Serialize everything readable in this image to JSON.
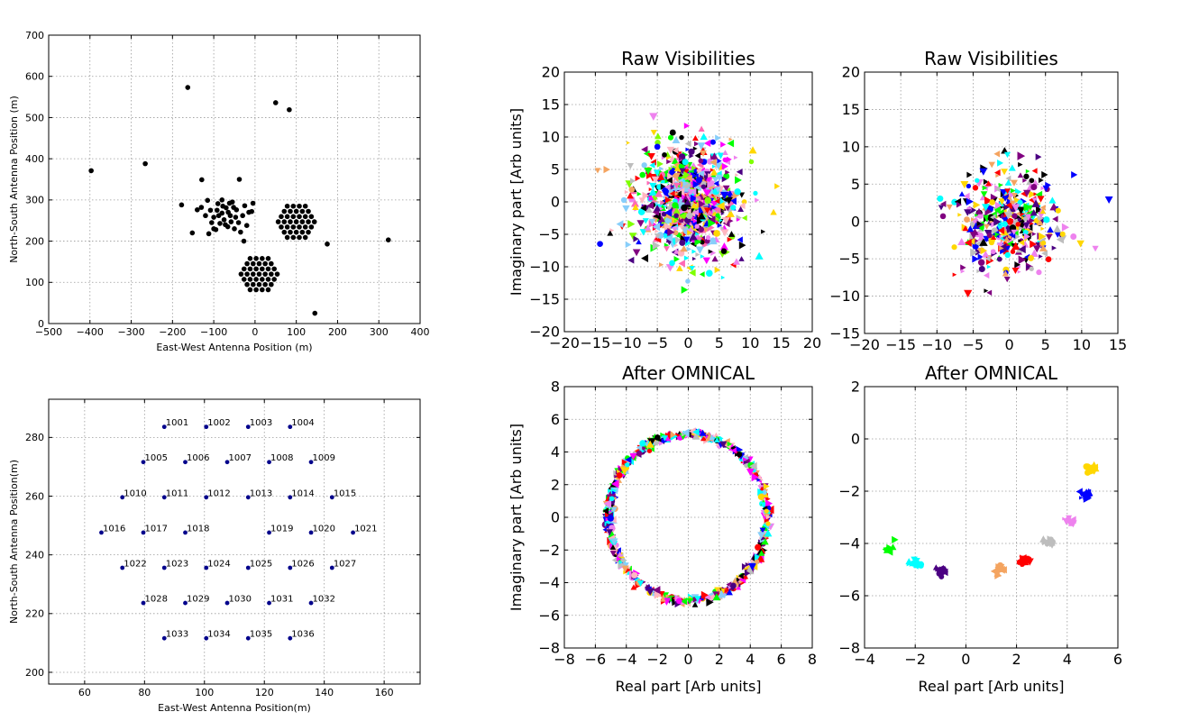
{
  "chart_data": [
    {
      "type": "scatter",
      "title": "",
      "xlabel": "East-West Antenna Position (m)",
      "ylabel": "North-South Antenna Position (m)",
      "xlim": [
        -500,
        400
      ],
      "ylim": [
        0,
        700
      ],
      "xticks": [
        -500,
        -400,
        -300,
        -200,
        -100,
        0,
        100,
        200,
        300,
        400
      ],
      "yticks": [
        0,
        100,
        200,
        300,
        400,
        500,
        600,
        700
      ],
      "xtick_labels": [
        "−500",
        "−400",
        "−300",
        "−200",
        "−100",
        "0",
        "100",
        "200",
        "300",
        "400"
      ],
      "ytick_labels": [
        "0",
        "100",
        "200",
        "300",
        "400",
        "500",
        "600",
        "700"
      ],
      "grid": true,
      "color": "#000000",
      "points": [
        [
          -397,
          371
        ],
        [
          -266,
          388
        ],
        [
          -163,
          573
        ],
        [
          -129,
          349
        ],
        [
          -38,
          350
        ],
        [
          50,
          536
        ],
        [
          83,
          519
        ],
        [
          -178,
          288
        ],
        [
          -152,
          220
        ],
        [
          -140,
          276
        ],
        [
          -130,
          282
        ],
        [
          -115,
          299
        ],
        [
          -112,
          218
        ],
        [
          -95,
          228
        ],
        [
          -90,
          291
        ],
        [
          -85,
          243
        ],
        [
          -80,
          268
        ],
        [
          -75,
          252
        ],
        [
          -70,
          281
        ],
        [
          -66,
          235
        ],
        [
          -60,
          262
        ],
        [
          -55,
          295
        ],
        [
          -50,
          230
        ],
        [
          -45,
          276
        ],
        [
          -40,
          245
        ],
        [
          -35,
          222
        ],
        [
          -30,
          262
        ],
        [
          -25,
          286
        ],
        [
          -20,
          238
        ],
        [
          -15,
          270
        ],
        [
          -27,
          200
        ],
        [
          -105,
          245
        ],
        [
          -100,
          258
        ],
        [
          -92,
          275
        ],
        [
          -88,
          262
        ],
        [
          -78,
          285
        ],
        [
          -72,
          240
        ],
        [
          -65,
          270
        ],
        [
          -58,
          247
        ],
        [
          -52,
          282
        ],
        [
          -47,
          258
        ],
        [
          -62,
          292
        ],
        [
          -100,
          230
        ],
        [
          -108,
          275
        ],
        [
          -120,
          262
        ],
        [
          -8,
          272
        ],
        [
          -80,
          300
        ],
        [
          -5,
          292
        ],
        [
          175,
          193
        ],
        [
          323,
          203
        ],
        [
          145,
          25
        ]
      ],
      "hexagon_arrays": [
        {
          "center": [
            100,
            247
          ],
          "pitch": 14.6,
          "radius": 3
        },
        {
          "center": [
            10,
            120
          ],
          "pitch": 14.6,
          "radius": 3
        }
      ]
    },
    {
      "type": "scatter",
      "title": "",
      "xlabel": "East-West Antenna Position(m)",
      "ylabel": "North-South Antenna Position(m)",
      "xlim": [
        48,
        172
      ],
      "ylim": [
        196,
        293
      ],
      "xticks": [
        60,
        80,
        100,
        120,
        140,
        160
      ],
      "yticks": [
        200,
        220,
        240,
        260,
        280
      ],
      "xtick_labels": [
        "60",
        "80",
        "100",
        "120",
        "140",
        "160"
      ],
      "ytick_labels": [
        "200",
        "220",
        "240",
        "260",
        "280"
      ],
      "grid": true,
      "color": "#00008b",
      "antennas": [
        {
          "id": "1001",
          "x": 86.6,
          "y": 283.6
        },
        {
          "id": "1002",
          "x": 100.6,
          "y": 283.6
        },
        {
          "id": "1003",
          "x": 114.6,
          "y": 283.6
        },
        {
          "id": "1004",
          "x": 128.6,
          "y": 283.6
        },
        {
          "id": "1005",
          "x": 79.6,
          "y": 271.6
        },
        {
          "id": "1006",
          "x": 93.6,
          "y": 271.6
        },
        {
          "id": "1007",
          "x": 107.6,
          "y": 271.6
        },
        {
          "id": "1008",
          "x": 121.6,
          "y": 271.6
        },
        {
          "id": "1009",
          "x": 135.6,
          "y": 271.6
        },
        {
          "id": "1010",
          "x": 72.6,
          "y": 259.6
        },
        {
          "id": "1011",
          "x": 86.6,
          "y": 259.6
        },
        {
          "id": "1012",
          "x": 100.6,
          "y": 259.6
        },
        {
          "id": "1013",
          "x": 114.6,
          "y": 259.6
        },
        {
          "id": "1014",
          "x": 128.6,
          "y": 259.6
        },
        {
          "id": "1015",
          "x": 142.6,
          "y": 259.6
        },
        {
          "id": "1016",
          "x": 65.6,
          "y": 247.6
        },
        {
          "id": "1017",
          "x": 79.6,
          "y": 247.6
        },
        {
          "id": "1018",
          "x": 93.6,
          "y": 247.6
        },
        {
          "id": "1019",
          "x": 121.6,
          "y": 247.6
        },
        {
          "id": "1020",
          "x": 135.6,
          "y": 247.6
        },
        {
          "id": "1021",
          "x": 149.6,
          "y": 247.6
        },
        {
          "id": "1022",
          "x": 72.6,
          "y": 235.6
        },
        {
          "id": "1023",
          "x": 86.6,
          "y": 235.6
        },
        {
          "id": "1024",
          "x": 100.6,
          "y": 235.6
        },
        {
          "id": "1025",
          "x": 114.6,
          "y": 235.6
        },
        {
          "id": "1026",
          "x": 128.6,
          "y": 235.6
        },
        {
          "id": "1027",
          "x": 142.6,
          "y": 235.6
        },
        {
          "id": "1028",
          "x": 79.6,
          "y": 223.6
        },
        {
          "id": "1029",
          "x": 93.6,
          "y": 223.6
        },
        {
          "id": "1030",
          "x": 107.6,
          "y": 223.6
        },
        {
          "id": "1031",
          "x": 121.6,
          "y": 223.6
        },
        {
          "id": "1032",
          "x": 135.6,
          "y": 223.6
        },
        {
          "id": "1033",
          "x": 86.6,
          "y": 211.6
        },
        {
          "id": "1034",
          "x": 100.6,
          "y": 211.6
        },
        {
          "id": "1035",
          "x": 114.6,
          "y": 211.6
        },
        {
          "id": "1036",
          "x": 128.6,
          "y": 211.6
        }
      ]
    },
    {
      "type": "scatter",
      "title": "Raw Visibilities",
      "xlabel": "",
      "ylabel": "Imaginary part [Arb units]",
      "xlim": [
        -20,
        20
      ],
      "ylim": [
        -20,
        20
      ],
      "xticks": [
        -20,
        -15,
        -10,
        -5,
        0,
        5,
        10,
        15,
        20
      ],
      "yticks": [
        -20,
        -15,
        -10,
        -5,
        0,
        5,
        10,
        15,
        20
      ],
      "xtick_labels": [
        "−20",
        "−15",
        "−10",
        "−5",
        "0",
        "5",
        "10",
        "15",
        "20"
      ],
      "ytick_labels": [
        "−20",
        "−15",
        "−10",
        "−5",
        "0",
        "5",
        "10",
        "15",
        "20"
      ],
      "grid": true,
      "distribution": {
        "shape": "cloud",
        "center": [
          0,
          0
        ],
        "spread": 4.2,
        "point_count": 900
      },
      "colors": [
        "#ff0000",
        "#0000ff",
        "#00ff00",
        "#4b0082",
        "#ffd700",
        "#ff00ff",
        "#00ffff",
        "#800080",
        "#f4a460",
        "#ee82ee",
        "#ffb6c1",
        "#ff69b4",
        "#000000",
        "#bdbdbd",
        "#7fff00",
        "#87cefa"
      ]
    },
    {
      "type": "scatter",
      "title": "Raw Visibilities",
      "xlabel": "",
      "ylabel": "",
      "xlim": [
        -20,
        15
      ],
      "ylim": [
        -15,
        20
      ],
      "xticks": [
        -20,
        -15,
        -10,
        -5,
        0,
        5,
        10,
        15
      ],
      "yticks": [
        -15,
        -10,
        -5,
        0,
        5,
        10,
        15,
        20
      ],
      "xtick_labels": [
        "−20",
        "−15",
        "−10",
        "−5",
        "0",
        "5",
        "10",
        "15"
      ],
      "ytick_labels": [
        "−15",
        "−10",
        "−5",
        "0",
        "5",
        "10",
        "15",
        "20"
      ],
      "grid": true,
      "distribution": {
        "shape": "cloud",
        "center": [
          0,
          0
        ],
        "spread": 3.6,
        "point_count": 420
      },
      "colors": [
        "#ff0000",
        "#0000ff",
        "#00ffff",
        "#4b0082",
        "#ffd700",
        "#ee82ee",
        "#f4a460",
        "#00ff00",
        "#bdbdbd",
        "#800080",
        "#000000"
      ]
    },
    {
      "type": "scatter",
      "title": "After OMNICAL",
      "xlabel": "Real part [Arb units]",
      "ylabel": "Imaginary part [Arb units]",
      "xlim": [
        -8,
        8
      ],
      "ylim": [
        -8,
        8
      ],
      "xticks": [
        -8,
        -6,
        -4,
        -2,
        0,
        2,
        4,
        6,
        8
      ],
      "yticks": [
        -8,
        -6,
        -4,
        -2,
        0,
        2,
        4,
        6,
        8
      ],
      "xtick_labels": [
        "−8",
        "−6",
        "−4",
        "−2",
        "0",
        "2",
        "4",
        "6",
        "8"
      ],
      "ytick_labels": [
        "−8",
        "−6",
        "−4",
        "−2",
        "0",
        "2",
        "4",
        "6",
        "8"
      ],
      "grid": true,
      "distribution": {
        "shape": "ring",
        "center": [
          0,
          0
        ],
        "radius": 5.1,
        "point_count": 650
      },
      "colors": [
        "#ff0000",
        "#0000ff",
        "#00ff00",
        "#4b0082",
        "#ffd700",
        "#ff00ff",
        "#00ffff",
        "#800080",
        "#f4a460",
        "#ee82ee",
        "#ffb6c1",
        "#000000",
        "#bdbdbd",
        "#87cefa"
      ]
    },
    {
      "type": "scatter",
      "title": "After OMNICAL",
      "xlabel": "Real part [Arb units]",
      "ylabel": "",
      "xlim": [
        -4,
        6
      ],
      "ylim": [
        -8,
        2
      ],
      "xticks": [
        -4,
        -2,
        0,
        2,
        4,
        6
      ],
      "yticks": [
        -8,
        -6,
        -4,
        -2,
        0,
        2
      ],
      "xtick_labels": [
        "−4",
        "−2",
        "0",
        "2",
        "4",
        "6"
      ],
      "ytick_labels": [
        "−8",
        "−6",
        "−4",
        "−2",
        "0",
        "2"
      ],
      "grid": true,
      "clusters": [
        {
          "color": "#00ff00",
          "x": -3.0,
          "y": -4.2,
          "count": 12
        },
        {
          "color": "#00ffff",
          "x": -2.0,
          "y": -4.75,
          "count": 18
        },
        {
          "color": "#4b0082",
          "x": -0.95,
          "y": -5.05,
          "count": 18
        },
        {
          "color": "#f4a460",
          "x": 1.3,
          "y": -5.0,
          "count": 22
        },
        {
          "color": "#ff0000",
          "x": 2.3,
          "y": -4.65,
          "count": 24
        },
        {
          "color": "#bdbdbd",
          "x": 3.3,
          "y": -3.95,
          "count": 14
        },
        {
          "color": "#ee82ee",
          "x": 4.1,
          "y": -3.15,
          "count": 16
        },
        {
          "color": "#0000ff",
          "x": 4.7,
          "y": -2.2,
          "count": 20
        },
        {
          "color": "#ffd700",
          "x": 5.0,
          "y": -1.15,
          "count": 16
        }
      ]
    }
  ]
}
